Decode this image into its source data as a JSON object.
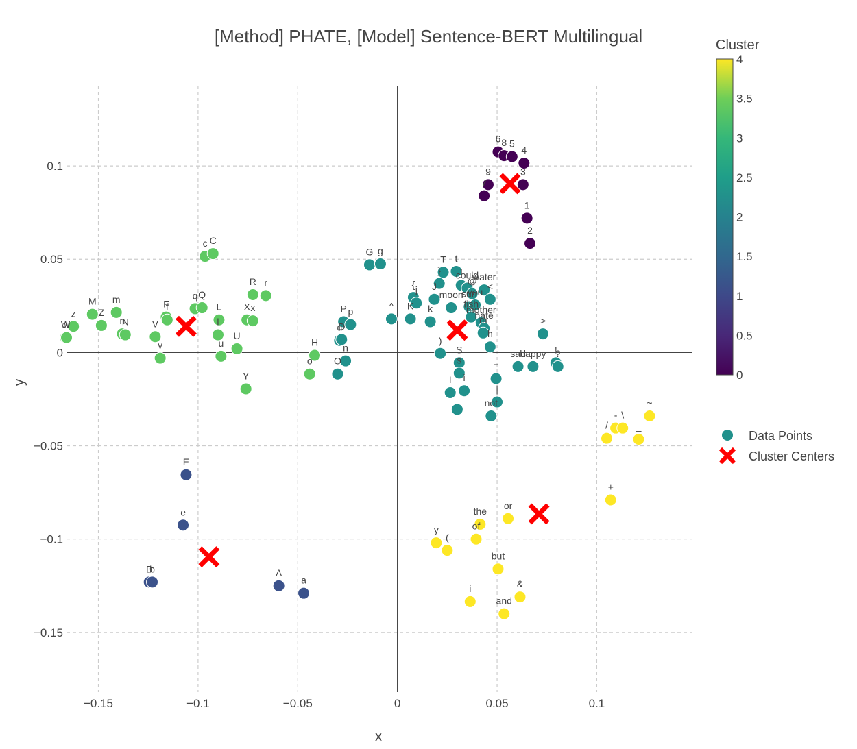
{
  "chart_data": {
    "type": "scatter",
    "title": "[Method] PHATE, [Model] Sentence-BERT Multilingual",
    "xlabel": "x",
    "ylabel": "y",
    "xlim": [
      -0.166,
      0.148
    ],
    "ylim": [
      -0.182,
      0.143
    ],
    "xticks": [
      -0.15,
      -0.1,
      -0.05,
      0,
      0.05,
      0.1
    ],
    "xtick_labels": [
      "−0.15",
      "−0.1",
      "−0.05",
      "0",
      "0.05",
      "0.1"
    ],
    "yticks": [
      0.1,
      0.05,
      0,
      -0.05,
      -0.1,
      -0.15
    ],
    "ytick_labels": [
      "0.1",
      "0.05",
      "0",
      "−0.05",
      "−0.1",
      "−0.15"
    ],
    "grid": true,
    "legend_placement": "right",
    "legend": [
      "Data Points",
      "Cluster Centers"
    ],
    "colorbar": {
      "title": "Cluster",
      "range": [
        0,
        4
      ],
      "ticks": [
        4,
        3.5,
        3,
        2.5,
        2,
        1.5,
        1,
        0.5,
        0
      ],
      "colors": [
        "#440154",
        "#3b528b",
        "#21918c",
        "#5ec962",
        "#fde725"
      ]
    },
    "cluster_colors": {
      "0": "#440154",
      "1": "#3b528b",
      "2": "#21918c",
      "3": "#5ec962",
      "4": "#fde725"
    },
    "center_color": "#ff0000",
    "points": [
      {
        "label": "6",
        "x": 0.0505,
        "y": 0.1075,
        "c": 0
      },
      {
        "label": "8",
        "x": 0.0535,
        "y": 0.1055,
        "c": 0
      },
      {
        "label": "5",
        "x": 0.0575,
        "y": 0.105,
        "c": 0
      },
      {
        "label": "4",
        "x": 0.0635,
        "y": 0.1015,
        "c": 0
      },
      {
        "label": "9",
        "x": 0.0455,
        "y": 0.09,
        "c": 0
      },
      {
        "label": "3",
        "x": 0.063,
        "y": 0.09,
        "c": 0
      },
      {
        "label": "7",
        "x": 0.0435,
        "y": 0.084,
        "c": 0
      },
      {
        "label": "1",
        "x": 0.065,
        "y": 0.072,
        "c": 0
      },
      {
        "label": "2",
        "x": 0.0665,
        "y": 0.0585,
        "c": 0
      },
      {
        "label": "E",
        "x": -0.106,
        "y": -0.0655,
        "c": 1
      },
      {
        "label": "e",
        "x": -0.1075,
        "y": -0.0925,
        "c": 1
      },
      {
        "label": "B",
        "x": -0.1245,
        "y": -0.123,
        "c": 1
      },
      {
        "label": "b",
        "x": -0.123,
        "y": -0.123,
        "c": 1
      },
      {
        "label": "A",
        "x": -0.0595,
        "y": -0.125,
        "c": 1
      },
      {
        "label": "a",
        "x": -0.047,
        "y": -0.129,
        "c": 1
      },
      {
        "label": "G",
        "x": -0.014,
        "y": 0.047,
        "c": 2
      },
      {
        "label": "g",
        "x": -0.0085,
        "y": 0.0475,
        "c": 2
      },
      {
        "label": "T",
        "x": 0.023,
        "y": 0.043,
        "c": 2
      },
      {
        "label": "t",
        "x": 0.0295,
        "y": 0.0435,
        "c": 2
      },
      {
        "label": "}",
        "x": 0.021,
        "y": 0.037,
        "c": 2
      },
      {
        "label": "]",
        "x": 0.032,
        "y": 0.036,
        "c": 2
      },
      {
        "label": "could",
        "x": 0.035,
        "y": 0.0345,
        "c": 2
      },
      {
        "label": "water",
        "x": 0.0435,
        "y": 0.0335,
        "c": 2
      },
      {
        "label": "{",
        "x": 0.008,
        "y": 0.0295,
        "c": 2
      },
      {
        "label": "j",
        "x": 0.0095,
        "y": 0.0265,
        "c": 2
      },
      {
        "label": "J",
        "x": 0.0185,
        "y": 0.0285,
        "c": 2
      },
      {
        "label": "@",
        "x": 0.0375,
        "y": 0.0315,
        "c": 2
      },
      {
        "label": "<",
        "x": 0.0465,
        "y": 0.0285,
        "c": 2
      },
      {
        "label": "moon",
        "x": 0.027,
        "y": 0.024,
        "c": 2
      },
      {
        "label": "sun",
        "x": 0.036,
        "y": 0.0245,
        "c": 2
      },
      {
        "label": "you",
        "x": 0.039,
        "y": 0.0255,
        "c": 2
      },
      {
        "label": "fish",
        "x": 0.037,
        "y": 0.019,
        "c": 2
      },
      {
        "label": "P",
        "x": -0.027,
        "y": 0.0165,
        "c": 2
      },
      {
        "label": "p",
        "x": -0.0235,
        "y": 0.015,
        "c": 2
      },
      {
        "label": "^",
        "x": -0.003,
        "y": 0.018,
        "c": 2
      },
      {
        "label": "K",
        "x": 0.0065,
        "y": 0.018,
        "c": 2
      },
      {
        "label": "k",
        "x": 0.0165,
        "y": 0.0165,
        "c": 2
      },
      {
        "label": "mother",
        "x": 0.042,
        "y": 0.016,
        "c": 2
      },
      {
        "label": "hate",
        "x": 0.0435,
        "y": 0.013,
        "c": 2
      },
      {
        "label": "m",
        "x": 0.043,
        "y": 0.0105,
        "c": 2
      },
      {
        "label": "d",
        "x": -0.029,
        "y": 0.0065,
        "c": 2
      },
      {
        "label": "D",
        "x": -0.028,
        "y": 0.007,
        "c": 2
      },
      {
        "label": ">",
        "x": 0.073,
        "y": 0.01,
        "c": 2
      },
      {
        "label": ")",
        "x": 0.0215,
        "y": -0.0005,
        "c": 2
      },
      {
        "label": "h",
        "x": 0.0465,
        "y": 0.003,
        "c": 2
      },
      {
        "label": "O",
        "x": -0.03,
        "y": -0.0115,
        "c": 2
      },
      {
        "label": "n",
        "x": -0.026,
        "y": -0.0045,
        "c": 2
      },
      {
        "label": "S",
        "x": 0.031,
        "y": -0.0055,
        "c": 2
      },
      {
        "label": "s",
        "x": 0.031,
        "y": -0.011,
        "c": 2
      },
      {
        "label": "sad",
        "x": 0.0605,
        "y": -0.0075,
        "c": 2
      },
      {
        "label": "happy",
        "x": 0.068,
        "y": -0.0075,
        "c": 2
      },
      {
        "label": "!",
        "x": 0.0795,
        "y": -0.0055,
        "c": 2
      },
      {
        "label": "?",
        "x": 0.0805,
        "y": -0.0075,
        "c": 2
      },
      {
        "label": "=",
        "x": 0.0495,
        "y": -0.014,
        "c": 2
      },
      {
        "label": "I",
        "x": 0.0265,
        "y": -0.0215,
        "c": 2
      },
      {
        "label": "i",
        "x": 0.0335,
        "y": -0.0205,
        "c": 2
      },
      {
        "label": "|",
        "x": 0.05,
        "y": -0.0265,
        "c": 2
      },
      {
        "label": "not",
        "x": 0.047,
        "y": -0.034,
        "c": 2
      },
      {
        "label": "",
        "x": 0.03,
        "y": -0.0305,
        "c": 2
      },
      {
        "label": "c",
        "x": -0.0965,
        "y": 0.0515,
        "c": 3
      },
      {
        "label": "C",
        "x": -0.0925,
        "y": 0.053,
        "c": 3
      },
      {
        "label": "R",
        "x": -0.0725,
        "y": 0.031,
        "c": 3
      },
      {
        "label": "r",
        "x": -0.066,
        "y": 0.0305,
        "c": 3
      },
      {
        "label": "M",
        "x": -0.153,
        "y": 0.0205,
        "c": 3
      },
      {
        "label": "m",
        "x": -0.141,
        "y": 0.0215,
        "c": 3
      },
      {
        "label": "Z",
        "x": -0.1485,
        "y": 0.0145,
        "c": 3
      },
      {
        "label": "z",
        "x": -0.1625,
        "y": 0.014,
        "c": 3
      },
      {
        "label": "W",
        "x": -0.1665,
        "y": 0.008,
        "c": 3
      },
      {
        "label": "w",
        "x": -0.166,
        "y": 0.008,
        "c": 3
      },
      {
        "label": "n",
        "x": -0.138,
        "y": 0.01,
        "c": 3
      },
      {
        "label": "N",
        "x": -0.1365,
        "y": 0.0095,
        "c": 3
      },
      {
        "label": "F",
        "x": -0.116,
        "y": 0.019,
        "c": 3
      },
      {
        "label": "f",
        "x": -0.1155,
        "y": 0.0175,
        "c": 3
      },
      {
        "label": "q",
        "x": -0.1015,
        "y": 0.0235,
        "c": 3
      },
      {
        "label": "Q",
        "x": -0.098,
        "y": 0.024,
        "c": 3
      },
      {
        "label": "V",
        "x": -0.1215,
        "y": 0.0085,
        "c": 3
      },
      {
        "label": "v",
        "x": -0.119,
        "y": -0.003,
        "c": 3
      },
      {
        "label": "L",
        "x": -0.0895,
        "y": 0.0175,
        "c": 3
      },
      {
        "label": "l",
        "x": -0.09,
        "y": 0.0095,
        "c": 3
      },
      {
        "label": "u",
        "x": -0.0885,
        "y": -0.002,
        "c": 3
      },
      {
        "label": "U",
        "x": -0.0805,
        "y": 0.002,
        "c": 3
      },
      {
        "label": "X",
        "x": -0.0755,
        "y": 0.0175,
        "c": 3
      },
      {
        "label": "x",
        "x": -0.0725,
        "y": 0.017,
        "c": 3
      },
      {
        "label": "Y",
        "x": -0.076,
        "y": -0.0195,
        "c": 3
      },
      {
        "label": "H",
        "x": -0.0415,
        "y": -0.0015,
        "c": 3
      },
      {
        "label": "o",
        "x": -0.044,
        "y": -0.0115,
        "c": 3
      },
      {
        "label": "~",
        "x": 0.1265,
        "y": -0.034,
        "c": 4
      },
      {
        "label": "-",
        "x": 0.1095,
        "y": -0.0405,
        "c": 4
      },
      {
        "label": "\\",
        "x": 0.113,
        "y": -0.0405,
        "c": 4
      },
      {
        "label": "/",
        "x": 0.105,
        "y": -0.046,
        "c": 4
      },
      {
        "label": "_",
        "x": 0.121,
        "y": -0.0465,
        "c": 4
      },
      {
        "label": "+",
        "x": 0.107,
        "y": -0.079,
        "c": 4
      },
      {
        "label": "or",
        "x": 0.0555,
        "y": -0.089,
        "c": 4
      },
      {
        "label": "the",
        "x": 0.0415,
        "y": -0.092,
        "c": 4
      },
      {
        "label": "of",
        "x": 0.0395,
        "y": -0.1,
        "c": 4
      },
      {
        "label": "y",
        "x": 0.0195,
        "y": -0.102,
        "c": 4
      },
      {
        "label": "(",
        "x": 0.025,
        "y": -0.106,
        "c": 4
      },
      {
        "label": "but",
        "x": 0.0505,
        "y": -0.116,
        "c": 4
      },
      {
        "label": "&",
        "x": 0.0615,
        "y": -0.131,
        "c": 4
      },
      {
        "label": "i",
        "x": 0.0365,
        "y": -0.1335,
        "c": 4
      },
      {
        "label": "and",
        "x": 0.0535,
        "y": -0.14,
        "c": 4
      }
    ],
    "centers": [
      {
        "x": 0.0565,
        "y": 0.0905
      },
      {
        "x": -0.0945,
        "y": -0.1095
      },
      {
        "x": 0.03,
        "y": 0.012
      },
      {
        "x": -0.106,
        "y": 0.014
      },
      {
        "x": 0.071,
        "y": -0.0865
      }
    ]
  }
}
